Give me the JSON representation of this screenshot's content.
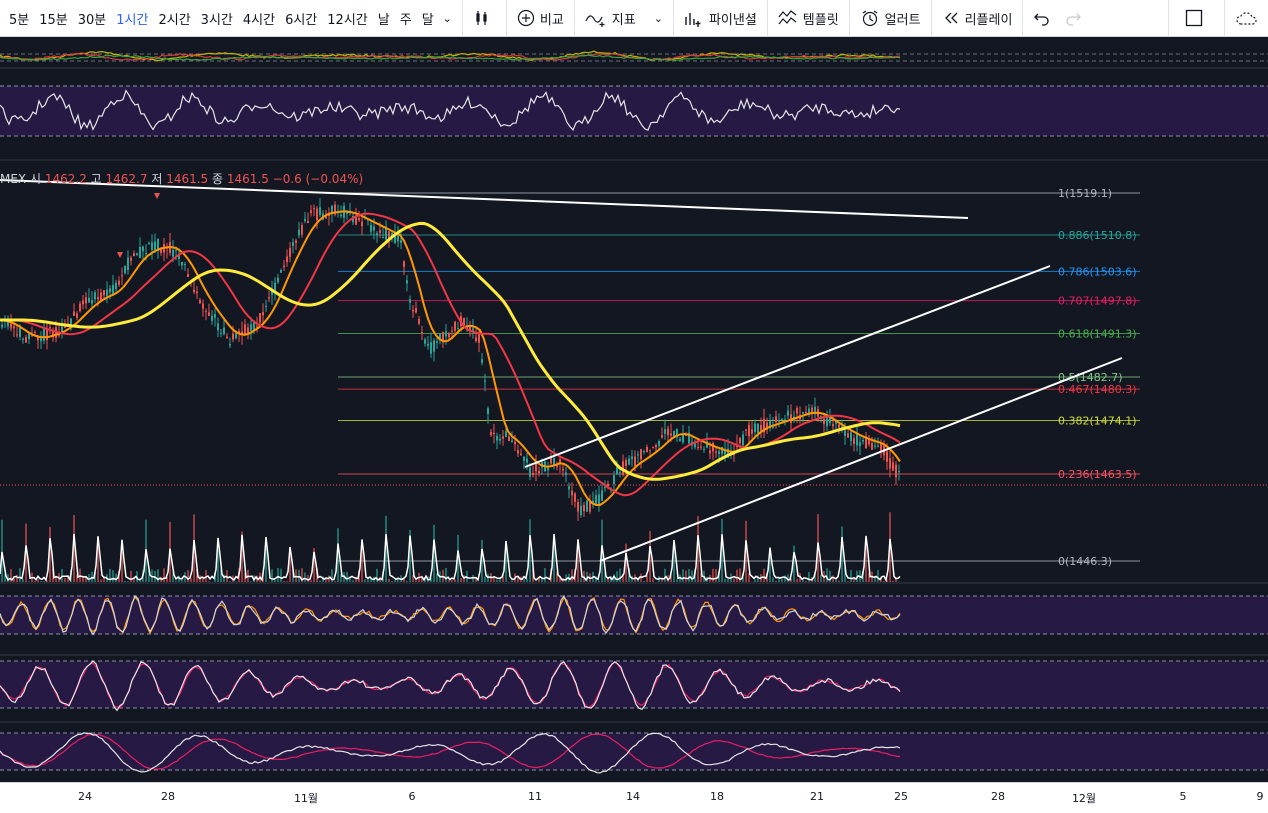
{
  "toolbar": {
    "intervals": [
      "5분",
      "15분",
      "30분",
      "1시간",
      "2시간",
      "3시간",
      "4시간",
      "6시간",
      "12시간",
      "날",
      "주",
      "달"
    ],
    "active_interval": "1시간",
    "compare_label": "비교",
    "indicators_label": "지표",
    "financials_label": "파이낸셜",
    "templates_label": "템플릿",
    "alert_label": "얼러트",
    "replay_label": "리플레이"
  },
  "legend": {
    "symbol": "MEX",
    "open_label": "시",
    "open": "1462.2",
    "high_label": "고",
    "high": "1462.7",
    "low_label": "저",
    "low": "1461.5",
    "close_label": "종",
    "close": "1461.5",
    "change": "−0.6 (−0.04%)"
  },
  "fib_levels": [
    {
      "label": "1(1519.1)",
      "color": "#b2b5be",
      "value": 1519.1
    },
    {
      "label": "0.886(1510.8)",
      "color": "#26a69a",
      "value": 1510.8
    },
    {
      "label": "0.786(1503.6)",
      "color": "#2196f3",
      "value": 1503.6
    },
    {
      "label": "0.707(1497.8)",
      "color": "#e91e63",
      "value": 1497.8
    },
    {
      "label": "0.618(1491.3)",
      "color": "#4caf50",
      "value": 1491.3
    },
    {
      "label": "0.5(1482.7)",
      "color": "#81c784",
      "value": 1482.7
    },
    {
      "label": "0.467(1480.3)",
      "color": "#f23645",
      "value": 1480.3
    },
    {
      "label": "0.382(1474.1)",
      "color": "#cddc39",
      "value": 1474.1
    },
    {
      "label": "0.236(1463.5)",
      "color": "#f7525f",
      "value": 1463.5
    },
    {
      "label": "0(1446.3)",
      "color": "#b2b5be",
      "value": 1446.3
    }
  ],
  "x_axis_labels": [
    "24",
    "28",
    "11월",
    "6",
    "11",
    "14",
    "18",
    "21",
    "25",
    "28",
    "12월",
    "5",
    "9"
  ],
  "colors": {
    "background": "#131722",
    "up": "#26a69a",
    "down": "#ef5350",
    "ma_fast": "#ff9800",
    "ma_mid": "#f23645",
    "ma_slow": "#ffeb3b",
    "panel_band": "#2a1a4a",
    "active_interval": "#2962ff"
  }
}
